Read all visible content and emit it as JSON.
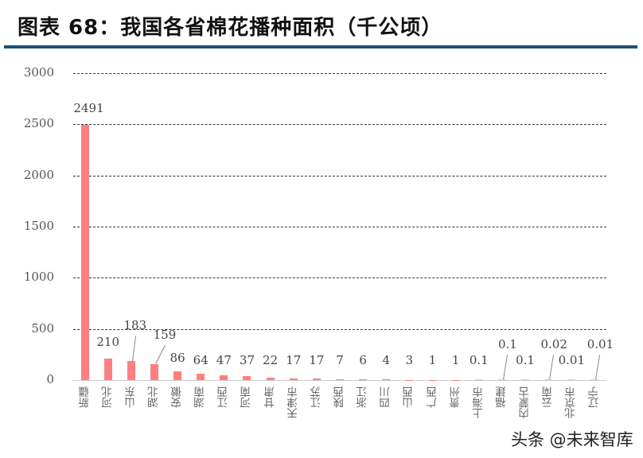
{
  "header": {
    "title": "图表 68：我国各省棉花播种面积（千公顷）"
  },
  "colors": {
    "bar": "#ff7f80",
    "title_rule": "#1f4e7a",
    "gridline": "#333333"
  },
  "chart_data": {
    "type": "bar",
    "title": "我国各省棉花播种面积（千公顷）",
    "xlabel": "",
    "ylabel": "",
    "ylim": [
      0,
      3000
    ],
    "yticks": [
      0,
      500,
      1000,
      1500,
      2000,
      2500,
      3000
    ],
    "grid": true,
    "legend": null,
    "categories": [
      "新疆",
      "河北",
      "山东",
      "湖北",
      "安徽",
      "湖南",
      "江西",
      "河南",
      "甘肃",
      "天津市",
      "江苏",
      "陕西",
      "浙江",
      "四川",
      "山西",
      "广西",
      "贵州",
      "上海市",
      "福建",
      "内蒙古",
      "云南",
      "北京市",
      "辽宁"
    ],
    "values": [
      2491,
      210,
      183,
      159,
      86,
      64,
      47,
      37,
      22,
      17,
      17,
      7,
      6,
      4,
      3,
      1,
      1,
      0.1,
      0.1,
      0.1,
      0.02,
      0.01,
      0.01
    ],
    "value_labels": [
      "2491",
      "210",
      "183",
      "159",
      "86",
      "64",
      "47",
      "37",
      "22",
      "17",
      "17",
      "7",
      "6",
      "4",
      "3",
      "1",
      "1",
      "0.1",
      "0.1",
      "0.1",
      "0.02",
      "0.01",
      "0.01"
    ]
  },
  "yaxis": {
    "ticks": [
      "0",
      "500",
      "1000",
      "1500",
      "2000",
      "2500",
      "3000"
    ]
  },
  "watermark": "头条 @未来智库"
}
